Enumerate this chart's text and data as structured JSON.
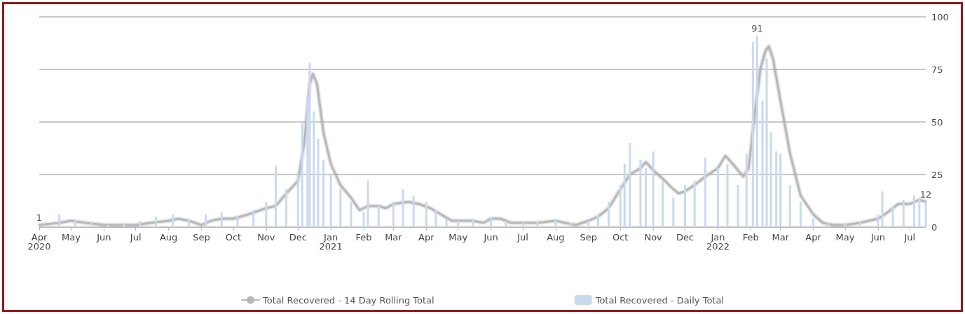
{
  "chart_data": {
    "type": "bar",
    "xlim": [
      "2020-04-01",
      "2022-07-16"
    ],
    "xticks": [
      {
        "value": "2020-04-01",
        "label": "Apr\n2020"
      },
      {
        "value": "2020-05-01",
        "label": "May"
      },
      {
        "value": "2020-06-01",
        "label": "Jun"
      },
      {
        "value": "2020-07-01",
        "label": "Jul"
      },
      {
        "value": "2020-08-01",
        "label": "Aug"
      },
      {
        "value": "2020-09-01",
        "label": "Sep"
      },
      {
        "value": "2020-10-01",
        "label": "Oct"
      },
      {
        "value": "2020-11-01",
        "label": "Nov"
      },
      {
        "value": "2020-12-01",
        "label": "Dec"
      },
      {
        "value": "2021-01-01",
        "label": "Jan\n2021"
      },
      {
        "value": "2021-02-01",
        "label": "Feb"
      },
      {
        "value": "2021-03-01",
        "label": "Mar"
      },
      {
        "value": "2021-04-01",
        "label": "Apr"
      },
      {
        "value": "2021-05-01",
        "label": "May"
      },
      {
        "value": "2021-06-01",
        "label": "Jun"
      },
      {
        "value": "2021-07-01",
        "label": "Jul"
      },
      {
        "value": "2021-08-01",
        "label": "Aug"
      },
      {
        "value": "2021-09-01",
        "label": "Sep"
      },
      {
        "value": "2021-10-01",
        "label": "Oct"
      },
      {
        "value": "2021-11-01",
        "label": "Nov"
      },
      {
        "value": "2021-12-01",
        "label": "Dec"
      },
      {
        "value": "2022-01-01",
        "label": "Jan\n2022"
      },
      {
        "value": "2022-02-01",
        "label": "Feb"
      },
      {
        "value": "2022-03-01",
        "label": "Mar"
      },
      {
        "value": "2022-04-01",
        "label": "Apr"
      },
      {
        "value": "2022-05-01",
        "label": "May"
      },
      {
        "value": "2022-06-01",
        "label": "Jun"
      },
      {
        "value": "2022-07-01",
        "label": "Jul"
      }
    ],
    "ylim": [
      0,
      100
    ],
    "yticks": [
      0,
      25,
      50,
      75,
      100
    ],
    "grid": "y",
    "legend": "bottom",
    "series": [
      {
        "name": "Total Recovered - 14 Day Rolling Total",
        "type": "line",
        "color": "#b8b8b8",
        "marker": "none",
        "x": [
          "2020-04-01",
          "2020-04-20",
          "2020-05-01",
          "2020-05-15",
          "2020-06-01",
          "2020-06-15",
          "2020-07-01",
          "2020-07-15",
          "2020-08-01",
          "2020-08-10",
          "2020-08-20",
          "2020-09-01",
          "2020-09-10",
          "2020-09-20",
          "2020-10-01",
          "2020-10-15",
          "2020-11-01",
          "2020-11-10",
          "2020-11-20",
          "2020-12-01",
          "2020-12-07",
          "2020-12-12",
          "2020-12-15",
          "2020-12-19",
          "2020-12-25",
          "2021-01-01",
          "2021-01-10",
          "2021-01-20",
          "2021-01-28",
          "2021-02-05",
          "2021-02-15",
          "2021-02-22",
          "2021-03-01",
          "2021-03-15",
          "2021-03-25",
          "2021-04-05",
          "2021-04-15",
          "2021-04-25",
          "2021-05-05",
          "2021-05-15",
          "2021-05-25",
          "2021-06-01",
          "2021-06-10",
          "2021-06-20",
          "2021-07-01",
          "2021-07-15",
          "2021-08-01",
          "2021-08-10",
          "2021-08-20",
          "2021-09-01",
          "2021-09-10",
          "2021-09-20",
          "2021-10-01",
          "2021-10-10",
          "2021-10-20",
          "2021-10-25",
          "2021-11-01",
          "2021-11-10",
          "2021-11-20",
          "2021-11-25",
          "2021-12-01",
          "2021-12-10",
          "2021-12-20",
          "2022-01-01",
          "2022-01-08",
          "2022-01-15",
          "2022-01-25",
          "2022-01-30",
          "2022-02-05",
          "2022-02-10",
          "2022-02-15",
          "2022-02-18",
          "2022-02-22",
          "2022-03-01",
          "2022-03-10",
          "2022-03-20",
          "2022-04-01",
          "2022-04-10",
          "2022-04-20",
          "2022-05-01",
          "2022-05-15",
          "2022-06-01",
          "2022-06-10",
          "2022-06-20",
          "2022-07-01",
          "2022-07-10",
          "2022-07-16"
        ],
        "values": [
          1,
          2,
          3,
          2,
          1,
          1,
          1,
          2,
          3,
          4,
          3,
          1,
          3,
          4,
          4,
          6,
          9,
          10,
          16,
          22,
          40,
          68,
          73,
          68,
          45,
          30,
          20,
          14,
          8,
          10,
          10,
          9,
          11,
          12,
          11,
          9,
          6,
          3,
          3,
          3,
          2,
          4,
          4,
          2,
          2,
          2,
          3,
          2,
          1,
          3,
          5,
          9,
          18,
          25,
          28,
          31,
          27,
          23,
          18,
          16,
          17,
          20,
          24,
          28,
          34,
          30,
          24,
          28,
          55,
          75,
          84,
          86,
          80,
          60,
          35,
          15,
          6,
          2,
          1,
          1,
          2,
          4,
          7,
          11,
          11,
          13,
          12
        ]
      },
      {
        "name": "Total Recovered - Daily Total",
        "color": "#c9daf0",
        "x": [
          "2020-04-05",
          "2020-04-20",
          "2020-05-05",
          "2020-05-20",
          "2020-06-05",
          "2020-06-20",
          "2020-07-05",
          "2020-07-20",
          "2020-08-05",
          "2020-08-20",
          "2020-09-05",
          "2020-09-20",
          "2020-10-05",
          "2020-10-20",
          "2020-11-01",
          "2020-11-10",
          "2020-11-20",
          "2020-12-01",
          "2020-12-05",
          "2020-12-10",
          "2020-12-12",
          "2020-12-16",
          "2020-12-20",
          "2020-12-25",
          "2021-01-01",
          "2021-01-10",
          "2021-01-20",
          "2021-02-01",
          "2021-02-05",
          "2021-02-15",
          "2021-03-01",
          "2021-03-10",
          "2021-03-20",
          "2021-04-01",
          "2021-04-10",
          "2021-04-20",
          "2021-05-01",
          "2021-05-15",
          "2021-06-01",
          "2021-06-15",
          "2021-07-01",
          "2021-07-15",
          "2021-08-01",
          "2021-08-15",
          "2021-09-01",
          "2021-09-10",
          "2021-09-20",
          "2021-10-01",
          "2021-10-05",
          "2021-10-10",
          "2021-10-20",
          "2021-10-25",
          "2021-11-01",
          "2021-11-10",
          "2021-11-20",
          "2021-12-01",
          "2021-12-10",
          "2021-12-20",
          "2022-01-01",
          "2022-01-10",
          "2022-01-20",
          "2022-01-28",
          "2022-02-03",
          "2022-02-07",
          "2022-02-12",
          "2022-02-16",
          "2022-02-20",
          "2022-02-25",
          "2022-03-01",
          "2022-03-10",
          "2022-03-20",
          "2022-04-01",
          "2022-04-15",
          "2022-05-01",
          "2022-05-15",
          "2022-06-01",
          "2022-06-05",
          "2022-06-15",
          "2022-06-25",
          "2022-07-05",
          "2022-07-10",
          "2022-07-16"
        ],
        "values": [
          1,
          6,
          3,
          2,
          1,
          2,
          3,
          5,
          6,
          4,
          6,
          7,
          5,
          8,
          12,
          29,
          18,
          25,
          50,
          62,
          78,
          55,
          42,
          32,
          25,
          18,
          12,
          7,
          22,
          10,
          12,
          18,
          15,
          12,
          8,
          4,
          3,
          4,
          5,
          3,
          2,
          3,
          4,
          2,
          3,
          6,
          12,
          20,
          30,
          40,
          32,
          28,
          36,
          22,
          14,
          20,
          22,
          33,
          28,
          30,
          20,
          35,
          88,
          91,
          60,
          80,
          45,
          36,
          35,
          20,
          12,
          4,
          2,
          2,
          3,
          6,
          17,
          10,
          13,
          15,
          14,
          12
        ]
      }
    ],
    "annotations": [
      {
        "text": "1",
        "x": "2020-04-01",
        "y": 1
      },
      {
        "text": "91",
        "x": "2022-02-07",
        "y": 91
      },
      {
        "text": "12",
        "x": "2022-07-16",
        "y": 12
      }
    ]
  }
}
